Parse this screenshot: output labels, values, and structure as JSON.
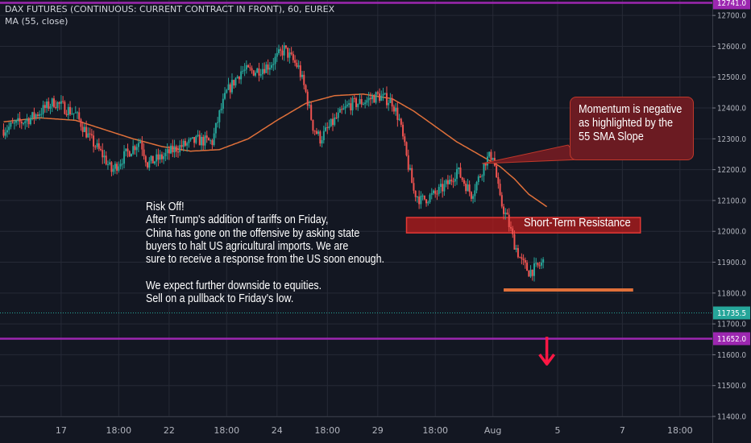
{
  "header": {
    "title": "DAX FUTURES (CONTINUOUS: CURRENT CONTRACT IN FRONT), 60, EUREX",
    "indicator": "MA (55, close)"
  },
  "colors": {
    "background": "#131722",
    "grid": "#262a36",
    "up": "#26a69a",
    "down": "#ef5350",
    "ma": "#e0703a",
    "level_line": "#9c27b0",
    "resistance_fill": "#b71c1c",
    "support_line": "#e0703a",
    "arrow": "#ff1744"
  },
  "notes": {
    "risk": [
      "Risk Off!",
      "After Trump's addition of tariffs on Friday,",
      "China has gone on the offensive by asking state",
      "buyers to halt US agricultural imports. We are",
      "sure to receive a response from the US soon enough.",
      "",
      "We expect further downside to equities.",
      "Sell on a pullback to Friday's low."
    ],
    "bubble": [
      "Momentum is negative",
      "as highlighted by the",
      "55 SMA Slope"
    ],
    "resistance_label": "Short-Term Resistance"
  },
  "chart_data": {
    "type": "candlestick",
    "price_range": [
      11400,
      12750
    ],
    "y_ticks": [
      11400,
      11500,
      11600,
      11700,
      11800,
      11900,
      12000,
      12100,
      12200,
      12300,
      12400,
      12500,
      12600,
      12700
    ],
    "y_tick_labels": [
      "11400.0",
      "11500.0",
      "11600.0",
      "11700.0",
      "11800.0",
      "11900.0",
      "12000.0",
      "12100.0",
      "12200.0",
      "12300.0",
      "12400.0",
      "12500.0",
      "12600.0",
      "12700.0"
    ],
    "x_tick_labels": [
      "17",
      "18:00",
      "22",
      "18:00",
      "24",
      "18:00",
      "29",
      "18:00",
      "Aug",
      "5",
      "7",
      "18:00"
    ],
    "x_tick_slots": [
      8,
      16,
      23,
      31,
      38,
      45,
      52,
      60,
      68,
      77,
      86,
      94
    ],
    "total_slots": 99,
    "price_labels": [
      {
        "value": 12741,
        "text": "12741.0",
        "style": "purple"
      },
      {
        "value": 11735.5,
        "text": "11735.5",
        "style": "teal"
      },
      {
        "value": 11652,
        "text": "11652.0",
        "style": "purple"
      }
    ],
    "levels": [
      {
        "name": "upper-level",
        "value": 12741
      },
      {
        "name": "lower-level",
        "value": 11652
      },
      {
        "name": "last-price",
        "value": 11735.5
      }
    ],
    "resistance_zone": {
      "from_slot": 56,
      "to_slot": 88.5,
      "low": 11995,
      "high": 12045
    },
    "support_line": {
      "from_slot": 69.5,
      "to_slot": 87.5,
      "value": 11810
    },
    "close_path": [
      [
        0,
        12330
      ],
      [
        4,
        12370
      ],
      [
        7,
        12420
      ],
      [
        10,
        12380
      ],
      [
        12,
        12300
      ],
      [
        14,
        12240
      ],
      [
        15,
        12195
      ],
      [
        17,
        12250
      ],
      [
        19,
        12295
      ],
      [
        20,
        12220
      ],
      [
        22,
        12240
      ],
      [
        24,
        12270
      ],
      [
        27,
        12295
      ],
      [
        29,
        12290
      ],
      [
        30,
        12380
      ],
      [
        31,
        12450
      ],
      [
        33,
        12520
      ],
      [
        35,
        12520
      ],
      [
        37,
        12540
      ],
      [
        39,
        12590
      ],
      [
        40,
        12560
      ],
      [
        41,
        12530
      ],
      [
        42,
        12450
      ],
      [
        43,
        12340
      ],
      [
        44,
        12300
      ],
      [
        46,
        12360
      ],
      [
        48,
        12410
      ],
      [
        50,
        12420
      ],
      [
        52,
        12440
      ],
      [
        54,
        12420
      ],
      [
        55,
        12360
      ],
      [
        56,
        12240
      ],
      [
        57,
        12130
      ],
      [
        58,
        12100
      ],
      [
        60,
        12120
      ],
      [
        62,
        12160
      ],
      [
        63,
        12200
      ],
      [
        64,
        12160
      ],
      [
        65,
        12120
      ],
      [
        66,
        12170
      ],
      [
        67,
        12230
      ],
      [
        68,
        12250
      ],
      [
        69,
        12100
      ],
      [
        70,
        12040
      ],
      [
        71,
        11960
      ],
      [
        72,
        11900
      ],
      [
        73,
        11870
      ],
      [
        74,
        11880
      ],
      [
        75,
        11900
      ]
    ],
    "ma_path": [
      [
        0,
        12355
      ],
      [
        5,
        12368
      ],
      [
        10,
        12360
      ],
      [
        14,
        12330
      ],
      [
        18,
        12300
      ],
      [
        22,
        12275
      ],
      [
        26,
        12260
      ],
      [
        30,
        12265
      ],
      [
        34,
        12300
      ],
      [
        38,
        12360
      ],
      [
        42,
        12415
      ],
      [
        46,
        12440
      ],
      [
        50,
        12445
      ],
      [
        54,
        12430
      ],
      [
        57,
        12390
      ],
      [
        60,
        12340
      ],
      [
        63,
        12290
      ],
      [
        66,
        12250
      ],
      [
        69,
        12210
      ],
      [
        71,
        12170
      ],
      [
        73,
        12120
      ],
      [
        75.5,
        12080
      ]
    ],
    "arrow": {
      "slot": 75.5,
      "value": 11580
    }
  }
}
